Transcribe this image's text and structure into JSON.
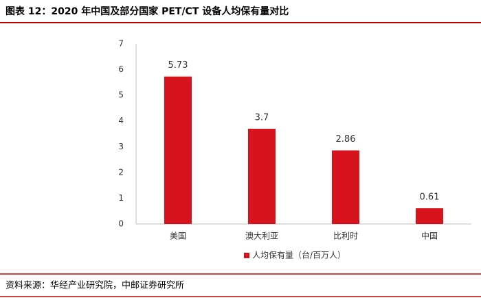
{
  "chart_data": {
    "type": "bar",
    "title": "图表 12：2020 年中国及部分国家 PET/CT 设备人均保有量对比",
    "categories": [
      "美国",
      "澳大利亚",
      "比利时",
      "中国"
    ],
    "series": [
      {
        "name": "人均保有量（台/百万人）",
        "color": "#d7141d",
        "values": [
          5.73,
          3.7,
          2.86,
          0.61
        ]
      }
    ],
    "ylim": [
      0,
      7
    ],
    "yticks": [
      0,
      1,
      2,
      3,
      4,
      5,
      6,
      7
    ],
    "grid": false,
    "legend": "bottom",
    "source": "资料来源：华经产业研究院，中邮证券研究所"
  }
}
